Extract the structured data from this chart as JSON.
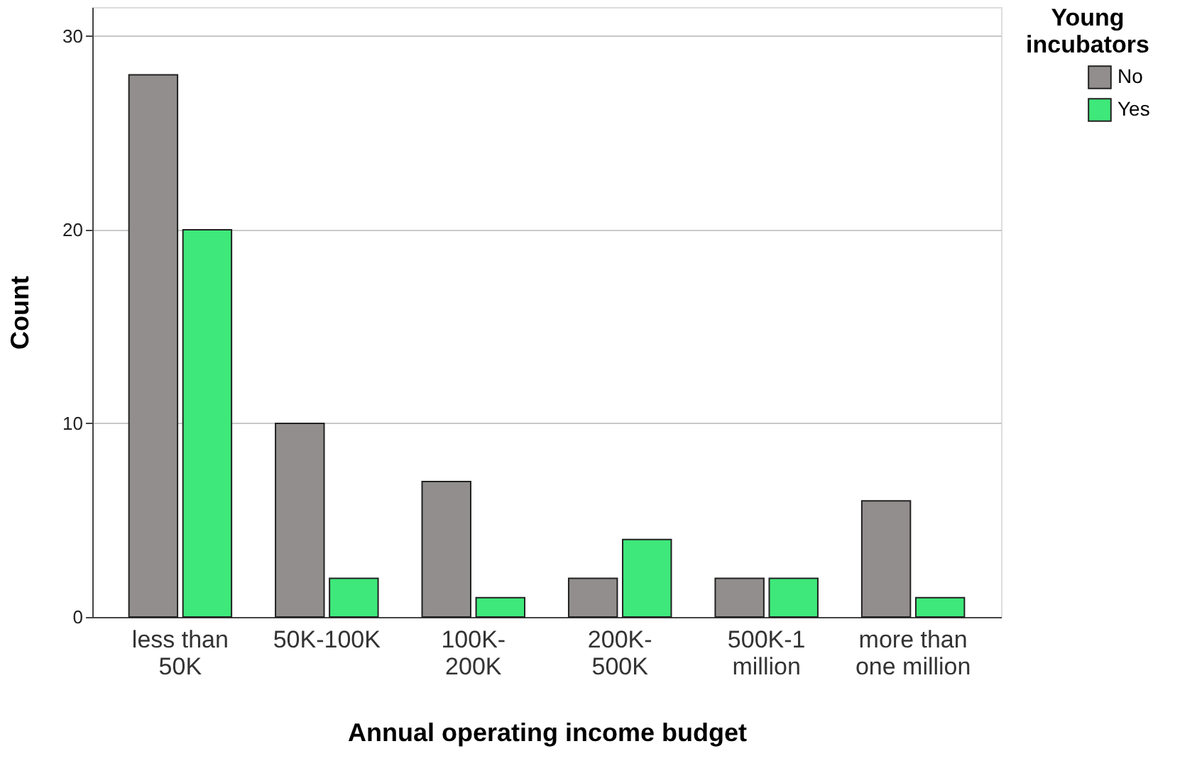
{
  "chart_data": {
    "type": "bar",
    "xlabel": "Annual operating income budget",
    "ylabel": "Count",
    "legend_title": "Young\nincubators",
    "categories": [
      "less than\n50K",
      "50K-100K",
      "100K-\n200K",
      "200K-\n500K",
      "500K-1\nmillion",
      "more than\none million"
    ],
    "series": [
      {
        "name": "No",
        "color": "#928e8d",
        "values": [
          28,
          10,
          7,
          2,
          2,
          6
        ]
      },
      {
        "name": "Yes",
        "color": "#3ee87a",
        "values": [
          20,
          2,
          1,
          4,
          2,
          1
        ]
      }
    ],
    "ylim": [
      0,
      31.5
    ],
    "yticks": [
      0,
      10,
      20,
      30
    ],
    "grid": "y",
    "legend": "top right"
  }
}
